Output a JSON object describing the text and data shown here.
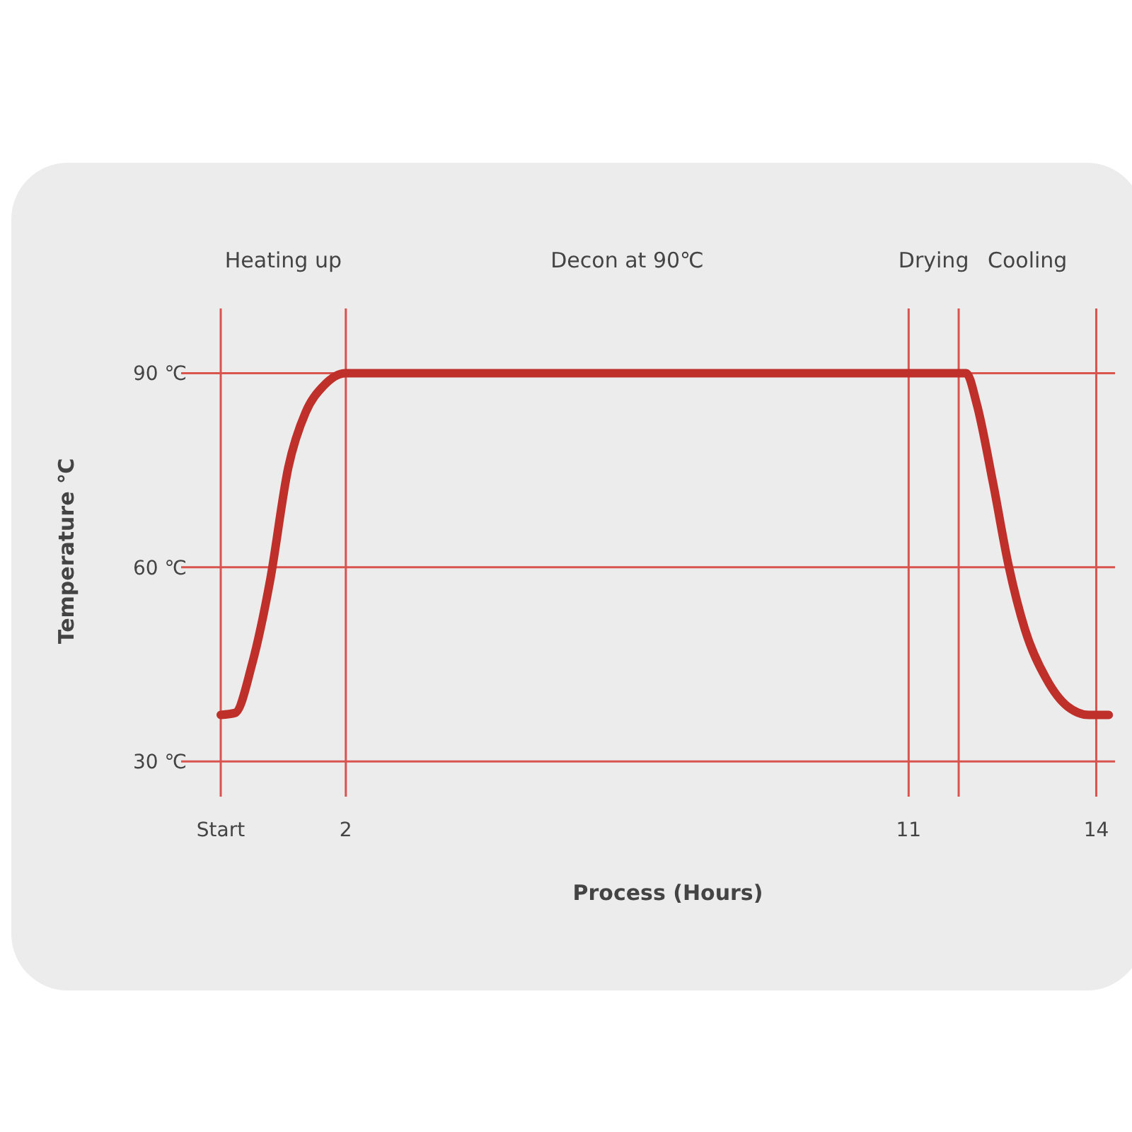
{
  "chart_data": {
    "type": "line",
    "xlabel": "Process (Hours)",
    "ylabel": "Temperature ℃",
    "xlim": [
      0,
      14.3
    ],
    "xticks": [
      {
        "value": 0,
        "label": "Start"
      },
      2,
      11,
      14
    ],
    "ylim": [
      25,
      100
    ],
    "yticks": [
      {
        "value": 30,
        "label": "30 ℃"
      },
      {
        "value": 60,
        "label": "60 ℃"
      },
      {
        "value": 90,
        "label": "90 ℃"
      }
    ],
    "grid": true,
    "marker": "none",
    "line_style": "solid",
    "ref_lines": [
      {
        "axis": "x",
        "value": 11.8,
        "color": "#d9534f"
      }
    ],
    "annotations": [
      "Heating up",
      "Decon at 90℃",
      "Drying",
      "Cooling"
    ],
    "series": [
      {
        "color": "#c0302b",
        "x": [
          0,
          0.23,
          0.5,
          0.79,
          1.08,
          1.36,
          1.64,
          2,
          11.8,
          11.92,
          12.09,
          12.35,
          12.6,
          12.86,
          13.2,
          13.54,
          13.88,
          14.2
        ],
        "values": [
          37.2,
          37.5,
          45,
          58,
          75.4,
          84,
          88,
          90,
          90,
          90,
          85.2,
          73,
          60.2,
          50.4,
          42.8,
          38.5,
          37.2,
          37.2
        ]
      }
    ]
  }
}
